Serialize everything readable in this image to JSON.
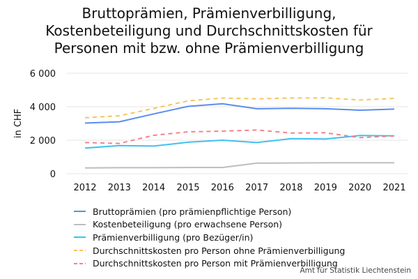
{
  "chart_data": {
    "type": "line",
    "title_lines": [
      "Bruttoprämien, Prämienverbilligung,",
      "Kostenbeteiligung und Durchschnittskosten für",
      "Personen mit bzw. ohne Prämienverbilligung"
    ],
    "ylabel": "in CHF",
    "xlabel": "",
    "x": [
      "2012",
      "2013",
      "2014",
      "2015",
      "2016",
      "2017",
      "2018",
      "2019",
      "2020",
      "2021"
    ],
    "ylim": [
      0,
      6000
    ],
    "yticks": [
      0,
      2000,
      4000,
      6000
    ],
    "ytick_labels": [
      "0",
      "2 000",
      "4 000",
      "6 000"
    ],
    "grid": "horizontal",
    "legend_position": "bottom",
    "series": [
      {
        "name": "Bruttoprämien (pro prämienpflichtige Person)",
        "color": "#5b8def",
        "dash": "solid",
        "values": [
          3020,
          3100,
          3570,
          4020,
          4180,
          3880,
          3910,
          3880,
          3790,
          3860
        ]
      },
      {
        "name": "Kostenbeteiligung (pro erwachsene Person)",
        "color": "#bdbdbd",
        "dash": "solid",
        "values": [
          340,
          360,
          360,
          370,
          370,
          630,
          640,
          650,
          650,
          650
        ]
      },
      {
        "name": "Prämienverbilligung (pro Bezüger/in)",
        "color": "#41c0f0",
        "dash": "solid",
        "values": [
          1530,
          1680,
          1650,
          1880,
          2000,
          1860,
          2090,
          2070,
          2280,
          2260
        ]
      },
      {
        "name": "Durchschnittskosten pro Person ohne Prämienverbilligung",
        "color": "#f5c65a",
        "dash": "dashed",
        "values": [
          3340,
          3460,
          3900,
          4350,
          4520,
          4470,
          4520,
          4530,
          4400,
          4500
        ]
      },
      {
        "name": "Durchschnittskosten pro Person mit Prämienverbilligung",
        "color": "#f3838a",
        "dash": "dashed",
        "values": [
          1860,
          1810,
          2290,
          2500,
          2540,
          2610,
          2430,
          2440,
          2150,
          2260
        ]
      }
    ]
  },
  "source": "Amt für Statistik Liechtenstein"
}
